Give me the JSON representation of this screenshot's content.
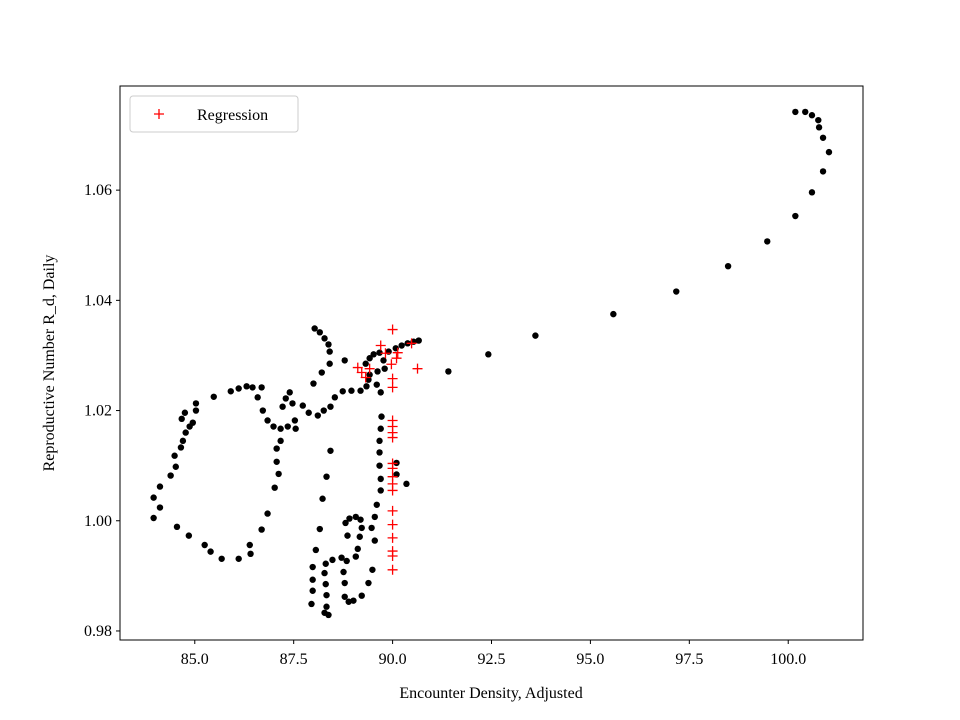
{
  "chart_data": {
    "type": "scatter",
    "xlabel": "Encounter Density, Adjusted",
    "ylabel": "Reproductive Number R_d, Daily",
    "xlim": [
      83.11,
      101.89
    ],
    "ylim": [
      0.97836,
      1.0789
    ],
    "xticks": [
      {
        "value": 85,
        "label": "85.0"
      },
      87.5,
      {
        "value": 90,
        "label": "90.0"
      },
      92.5,
      {
        "value": 95,
        "label": "95.0"
      },
      97.5,
      {
        "value": 100,
        "label": "100.0"
      }
    ],
    "yticks": [
      0.98,
      {
        "value": 1.0,
        "label": "1.00"
      },
      1.02,
      1.04,
      1.06
    ],
    "legend": "upper left",
    "grid": false,
    "series": [
      {
        "color": "#000000",
        "marker": "circle",
        "x": [
          100.18,
          100.43,
          100.6,
          100.76,
          100.78,
          100.88,
          101.03,
          100.88,
          100.6,
          100.18,
          99.47,
          98.48,
          97.17,
          95.58,
          93.61,
          92.42,
          91.41,
          90.66,
          90.53,
          90.38,
          90.23,
          90.08,
          89.9,
          88.03,
          88.16,
          88.28,
          88.38,
          88.41,
          88.41,
          88.21,
          88.0,
          88.11,
          88.26,
          88.43,
          88.54,
          88.74,
          88.96,
          89.19,
          89.34,
          89.42,
          89.32,
          88.79,
          89.42,
          89.52,
          89.67,
          89.77,
          89.8,
          89.62,
          89.39,
          89.6,
          89.7,
          89.72,
          89.7,
          89.67,
          89.67,
          89.67,
          89.7,
          89.7,
          89.6,
          89.55,
          89.47,
          89.55,
          89.49,
          89.39,
          89.22,
          89.01,
          88.89,
          88.79,
          88.79,
          88.76,
          88.84,
          89.07,
          88.71,
          88.48,
          88.31,
          88.28,
          88.31,
          88.33,
          88.33,
          88.38,
          88.28,
          87.98,
          87.95,
          87.98,
          87.98,
          88.06,
          88.16,
          88.23,
          88.33,
          88.43,
          88.86,
          88.81,
          88.91,
          89.07,
          89.19,
          89.22,
          89.17,
          89.12,
          90.35,
          90.1,
          90.1,
          83.96,
          83.96,
          84.12,
          84.12,
          84.39,
          84.49,
          84.65,
          84.7,
          84.77,
          84.87,
          84.95,
          84.67,
          84.75,
          85.03,
          85.03,
          85.48,
          85.91,
          86.11,
          86.31,
          86.46,
          86.69,
          86.59,
          86.72,
          86.84,
          86.99,
          87.17,
          87.35,
          87.53,
          87.55,
          87.3,
          87.22,
          87.47,
          87.73,
          87.88,
          87.4,
          84.55,
          84.85,
          85.25,
          85.4,
          85.68,
          86.11,
          86.39,
          86.41,
          86.69,
          86.84,
          87.02,
          87.12,
          87.07,
          87.07,
          87.17,
          84.52
        ],
        "y": [
          1.0742,
          1.0742,
          1.0736,
          1.0727,
          1.0714,
          1.0695,
          1.0669,
          1.0634,
          1.0596,
          1.0553,
          1.0507,
          1.0462,
          1.0416,
          1.0375,
          1.0336,
          1.0302,
          1.0271,
          1.0327,
          1.0325,
          1.0322,
          1.0318,
          1.0313,
          1.0307,
          1.0349,
          1.0342,
          1.0331,
          1.032,
          1.0307,
          1.0285,
          1.0269,
          1.0249,
          1.0191,
          1.02,
          1.0207,
          1.0224,
          1.0235,
          1.0236,
          1.0236,
          1.0244,
          1.0265,
          1.0285,
          1.0291,
          1.0295,
          1.0302,
          1.0305,
          1.0291,
          1.0276,
          1.0271,
          1.0256,
          1.0247,
          1.0233,
          1.0189,
          1.0167,
          1.0145,
          1.0124,
          1.01,
          1.0076,
          1.0055,
          1.0029,
          1.0007,
          0.9987,
          0.9964,
          0.9911,
          0.9887,
          0.9864,
          0.9855,
          0.9853,
          0.9862,
          0.9887,
          0.9907,
          0.9927,
          0.9935,
          0.9933,
          0.9929,
          0.9922,
          0.9905,
          0.9885,
          0.9865,
          0.9844,
          0.9829,
          0.9833,
          0.9873,
          0.9849,
          0.9893,
          0.9916,
          0.9947,
          0.9985,
          1.004,
          1.008,
          1.0127,
          0.9973,
          0.9996,
          1.0004,
          1.0007,
          1.0002,
          0.9987,
          0.9971,
          0.9949,
          1.0067,
          1.0084,
          1.0105,
          1.0005,
          1.0042,
          1.0062,
          1.0024,
          1.0082,
          1.0118,
          1.0133,
          1.0145,
          1.016,
          1.0171,
          1.0178,
          1.0185,
          1.0196,
          1.02,
          1.0213,
          1.0225,
          1.0235,
          1.024,
          1.0244,
          1.0242,
          1.0242,
          1.0224,
          1.02,
          1.0182,
          1.0171,
          1.0167,
          1.0171,
          1.0182,
          1.0167,
          1.0222,
          1.0207,
          1.0213,
          1.0209,
          1.0196,
          1.0233,
          0.9989,
          0.9973,
          0.9956,
          0.9944,
          0.9931,
          0.9931,
          0.9956,
          0.994,
          0.9984,
          1.0013,
          1.006,
          1.0085,
          1.0107,
          1.0131,
          1.0145,
          1.0098
        ]
      },
      {
        "name": "Regression",
        "color": "#ff0000",
        "marker": "plus",
        "x": [
          90.0,
          89.7,
          89.82,
          90.13,
          90.1,
          89.97,
          90.63,
          90.48,
          89.12,
          89.22,
          89.32,
          89.42,
          90.0,
          90.0,
          90.0,
          90.0,
          90.0,
          90.0,
          90.0,
          90.0,
          90.0,
          90.0,
          90.0,
          90.0,
          90.0,
          90.0,
          90.0,
          90.0,
          90.0
        ],
        "y": [
          1.0347,
          1.0318,
          1.0304,
          1.0305,
          1.0295,
          1.0284,
          1.0276,
          1.0322,
          1.0278,
          1.0269,
          1.026,
          1.0276,
          1.0258,
          1.0242,
          1.0182,
          1.0171,
          1.016,
          1.0151,
          1.0104,
          1.0095,
          1.008,
          1.0067,
          1.0055,
          1.0018,
          0.9993,
          0.9969,
          0.9945,
          0.9936,
          0.9911
        ]
      }
    ]
  }
}
